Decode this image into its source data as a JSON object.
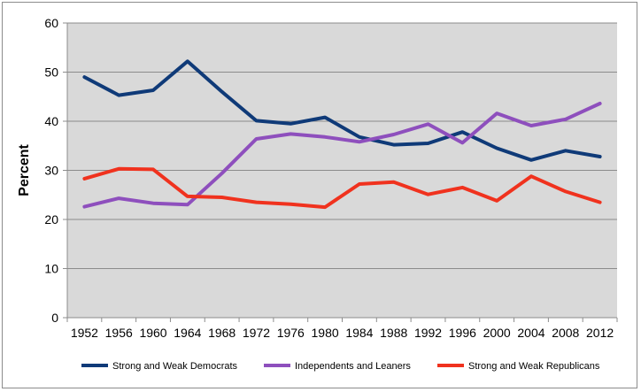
{
  "chart_data": {
    "type": "line",
    "title": "",
    "xlabel": "",
    "ylabel": "Percent",
    "ylim": [
      0,
      60
    ],
    "yticks": [
      0,
      10,
      20,
      30,
      40,
      50,
      60
    ],
    "grid": true,
    "legend_position": "bottom",
    "plot_background": "#d9d9d9",
    "categories": [
      "1952",
      "1956",
      "1960",
      "1964",
      "1968",
      "1972",
      "1976",
      "1980",
      "1984",
      "1988",
      "1992",
      "1996",
      "2000",
      "2004",
      "2008",
      "2012"
    ],
    "series": [
      {
        "name": "Strong and Weak Democrats",
        "color": "#0f3a78",
        "values": [
          49,
          45.3,
          46.3,
          52.2,
          46,
          40.1,
          39.5,
          40.8,
          36.8,
          35.2,
          35.5,
          37.8,
          34.5,
          32.1,
          34,
          32.8
        ]
      },
      {
        "name": "Independents and Leaners",
        "color": "#8e4fbd",
        "values": [
          22.6,
          24.3,
          23.3,
          23,
          29.4,
          36.4,
          37.4,
          36.8,
          35.8,
          37.3,
          39.4,
          35.6,
          41.6,
          39.1,
          40.4,
          43.6
        ]
      },
      {
        "name": "Strong and Weak Republicans",
        "color": "#f0321e",
        "values": [
          28.3,
          30.3,
          30.2,
          24.7,
          24.5,
          23.5,
          23.1,
          22.5,
          27.2,
          27.6,
          25.1,
          26.5,
          23.8,
          28.8,
          25.7,
          23.5
        ]
      }
    ]
  }
}
